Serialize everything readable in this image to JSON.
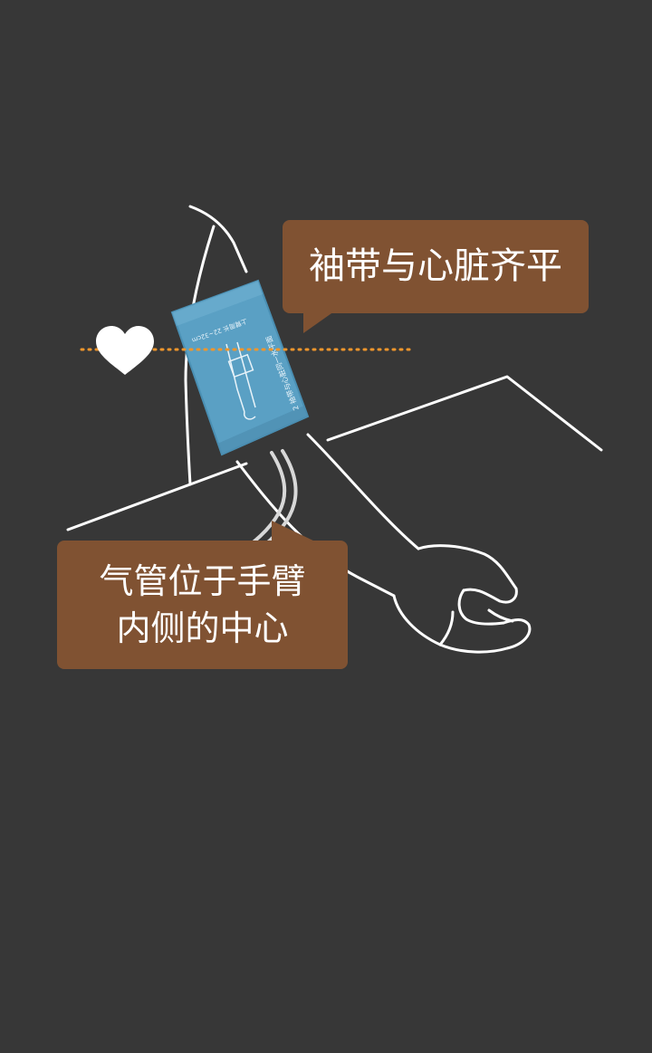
{
  "callouts": {
    "cuff_level": "袖带与心脏齐平",
    "tube_line1": "气管位于手臂",
    "tube_line2": "内侧的中心"
  },
  "cuff_print": {
    "side_text": "2 袖带与心脏同一水平面",
    "top_text": "上臂周长 22~32cm"
  },
  "colors": {
    "background": "#373737",
    "callout": "#805232",
    "cuff": "#5aa0c4",
    "level_line": "#f0962c",
    "heart": "#ffffff"
  },
  "icons": {
    "heart": "heart-icon"
  }
}
